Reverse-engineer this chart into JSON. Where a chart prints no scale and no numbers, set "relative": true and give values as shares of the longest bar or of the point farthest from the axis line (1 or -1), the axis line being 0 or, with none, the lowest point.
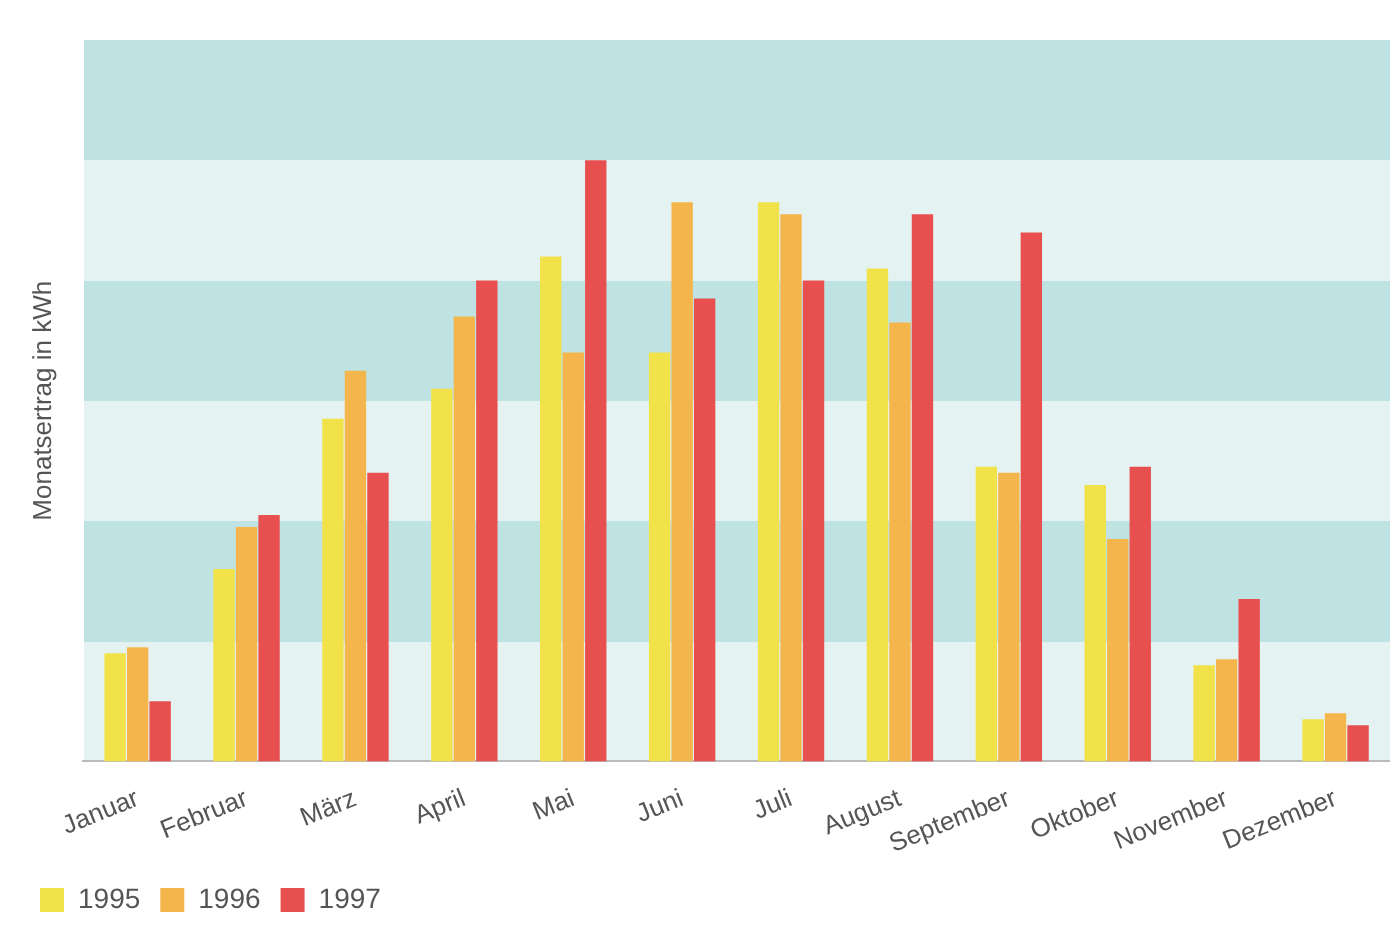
{
  "chart_data": {
    "type": "bar",
    "relative": true,
    "ylabel": "Monatsertrag in kWh",
    "legend": "bottom left",
    "categories": [
      "Januar",
      "Februar",
      "März",
      "April",
      "Mai",
      "Juni",
      "Juli",
      "August",
      "September",
      "Oktober",
      "November",
      "Dezember"
    ],
    "series": [
      {
        "name": "1995",
        "color": "#f2e24a",
        "values": [
          0.18,
          0.32,
          0.57,
          0.62,
          0.84,
          0.68,
          0.93,
          0.82,
          0.49,
          0.46,
          0.16,
          0.07
        ]
      },
      {
        "name": "1996",
        "color": "#f4b64c",
        "values": [
          0.19,
          0.39,
          0.65,
          0.74,
          0.68,
          0.93,
          0.91,
          0.73,
          0.48,
          0.37,
          0.17,
          0.08
        ]
      },
      {
        "name": "1997",
        "color": "#e8504f",
        "values": [
          0.1,
          0.41,
          0.48,
          0.8,
          1,
          0.77,
          0.8,
          0.91,
          0.88,
          0.49,
          0.27,
          0.06
        ]
      }
    ]
  }
}
